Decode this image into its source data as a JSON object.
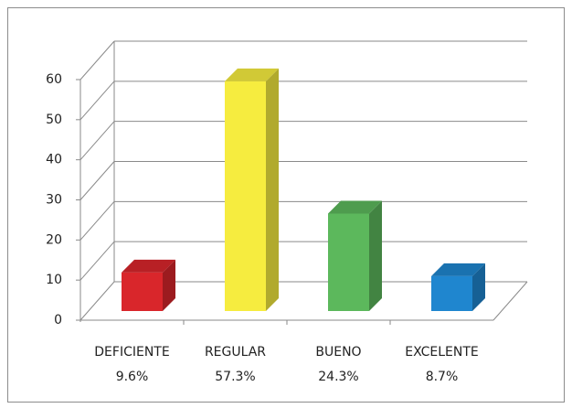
{
  "chart_data": {
    "type": "bar3d",
    "categories": [
      "DEFICIENTE",
      "REGULAR",
      "BUENO",
      "EXCELENTE"
    ],
    "values": [
      9.6,
      57.3,
      24.3,
      8.7
    ],
    "value_labels": [
      "9.6%",
      "57.3%",
      "24.3%",
      "8.7%"
    ],
    "colors": [
      "#d9262b",
      "#f6ec3f",
      "#5cb85c",
      "#1f86cf"
    ],
    "ylim": [
      0,
      60
    ],
    "yticks": [
      0,
      10,
      20,
      30,
      40,
      50,
      60
    ],
    "grid": true
  }
}
